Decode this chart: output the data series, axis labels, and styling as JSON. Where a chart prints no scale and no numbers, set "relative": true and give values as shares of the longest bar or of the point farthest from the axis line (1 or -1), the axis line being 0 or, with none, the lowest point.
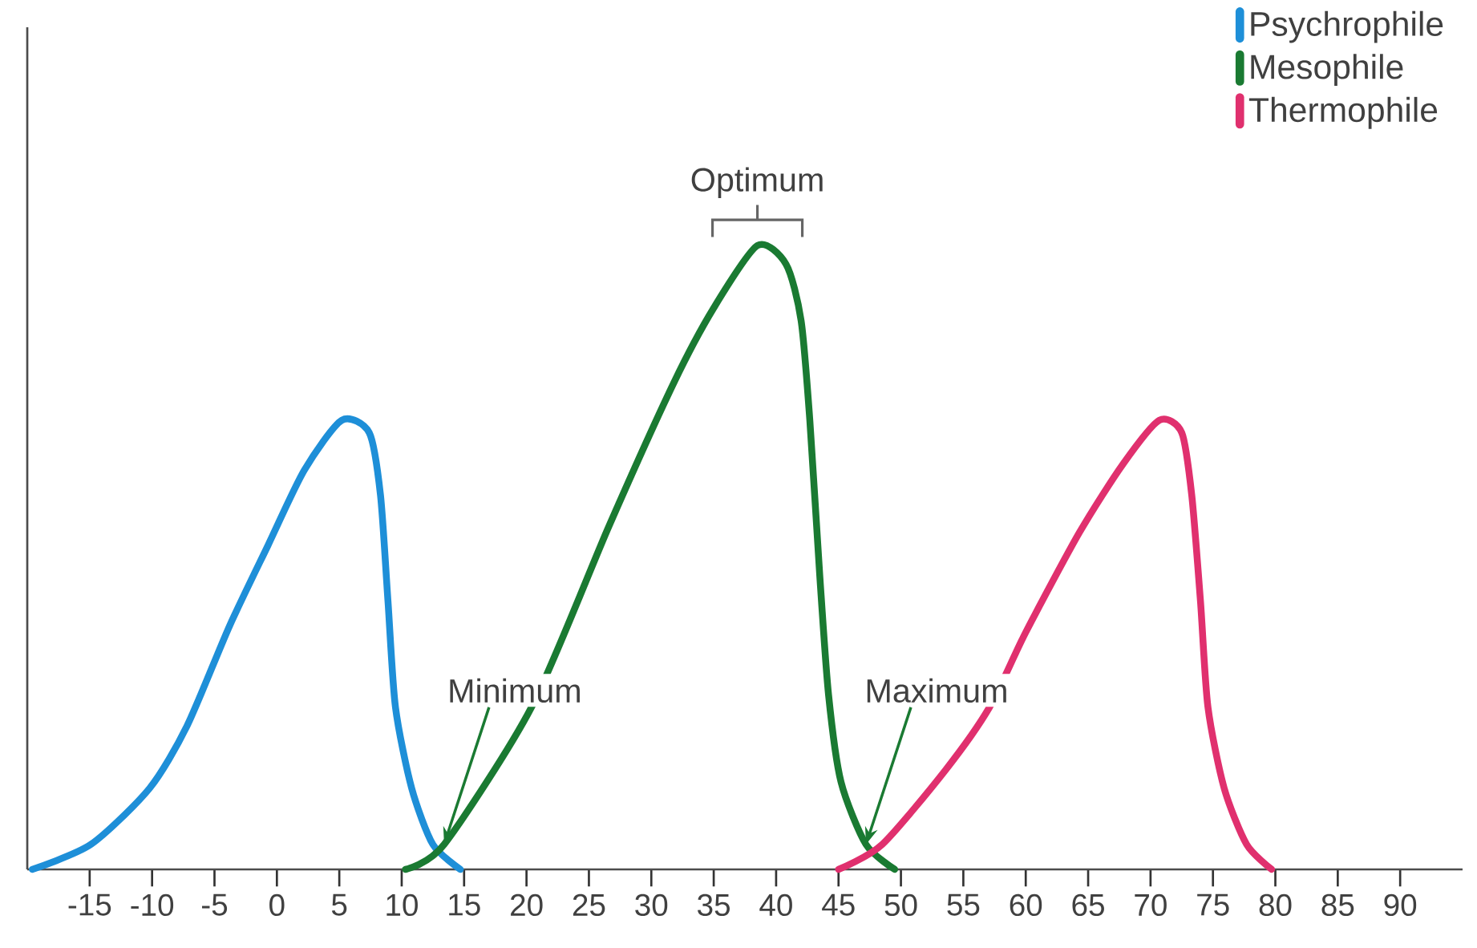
{
  "chart_data": {
    "type": "line",
    "relative": true,
    "xlim": [
      -20,
      95
    ],
    "xticks": [
      -15,
      -10,
      -5,
      0,
      5,
      10,
      15,
      20,
      25,
      30,
      35,
      40,
      45,
      50,
      55,
      60,
      65,
      70,
      75,
      80,
      85,
      90
    ],
    "legend": "top right",
    "grid": false,
    "marker": "none",
    "line_style": "solid",
    "series": [
      {
        "name": "Psychrophile",
        "color": "#1e8fd8",
        "x": [
          -19.6,
          -14.9,
          -10.2,
          -7.2,
          -3.8,
          -0.7,
          2.2,
          5.2,
          7.4,
          8.3,
          8.9,
          9.5,
          10.8,
          12.5,
          14.7
        ],
        "values": [
          0,
          0.04,
          0.13,
          0.23,
          0.39,
          0.52,
          0.64,
          0.72,
          0.7,
          0.6,
          0.43,
          0.26,
          0.13,
          0.04,
          0
        ]
      },
      {
        "name": "Mesophile",
        "color": "#1a7a32",
        "x": [
          10.3,
          13.4,
          20.4,
          26.6,
          31.8,
          35,
          38.5,
          40.8,
          42,
          42.7,
          43.5,
          44.2,
          45.2,
          47.2,
          49.5
        ],
        "values": [
          0,
          0.04,
          0.26,
          0.55,
          0.78,
          0.9,
          1,
          0.97,
          0.88,
          0.72,
          0.47,
          0.28,
          0.14,
          0.04,
          0
        ]
      },
      {
        "name": "Thermophile",
        "color": "#e0306e",
        "x": [
          45,
          48.5,
          53.6,
          57.1,
          60,
          64.3,
          67.8,
          70.7,
          72.5,
          73.3,
          74,
          74.6,
          75.9,
          77.7,
          79.7
        ],
        "values": [
          0,
          0.04,
          0.16,
          0.26,
          0.38,
          0.54,
          0.65,
          0.72,
          0.7,
          0.6,
          0.43,
          0.26,
          0.13,
          0.04,
          0
        ]
      }
    ],
    "annotations": [
      {
        "text": "Optimum",
        "x": 38.5,
        "y": 1
      },
      {
        "text": "Minimum",
        "x": 13.4,
        "y": 0.04
      },
      {
        "text": "Maximum",
        "x": 47.2,
        "y": 0.04
      }
    ]
  }
}
